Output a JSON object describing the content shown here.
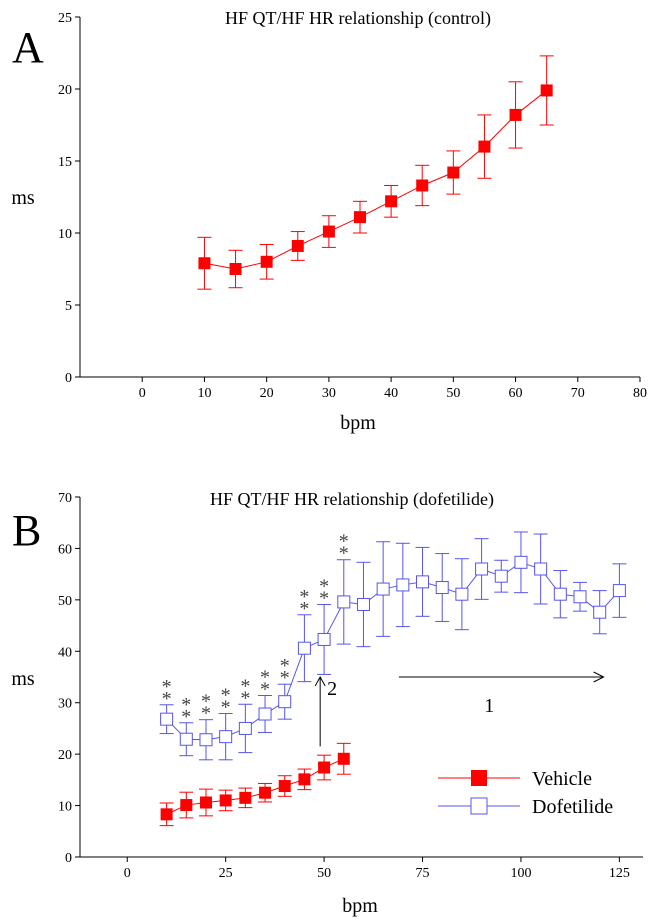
{
  "colors": {
    "red": "#ff0000",
    "blue": "#5555ee",
    "axis": "#000000",
    "annotation": "#444444"
  },
  "chart_data": [
    {
      "panel_label": "A",
      "type": "line",
      "title": "HF QT/HF HR relationship (control)",
      "xlabel": "bpm",
      "ylabel": "ms",
      "xlim": [
        -10,
        80
      ],
      "ylim": [
        0,
        25
      ],
      "xticks": [
        0,
        10,
        20,
        30,
        40,
        50,
        60,
        70,
        80
      ],
      "yticks": [
        0,
        5,
        10,
        15,
        20,
        25
      ],
      "grid": false,
      "series": [
        {
          "color_key": "red",
          "marker": "filled-square",
          "x": [
            10,
            15,
            20,
            25,
            30,
            35,
            40,
            45,
            50,
            55,
            60,
            65
          ],
          "y": [
            7.9,
            7.5,
            8.0,
            9.1,
            10.1,
            11.1,
            12.2,
            13.3,
            14.2,
            16.0,
            18.2,
            19.9
          ],
          "err": [
            1.8,
            1.3,
            1.2,
            1.0,
            1.1,
            1.1,
            1.1,
            1.4,
            1.5,
            2.2,
            2.3,
            2.4
          ]
        }
      ]
    },
    {
      "panel_label": "B",
      "type": "line",
      "title": "HF QT/HF HR relationship (dofetilide)",
      "xlabel": "bpm",
      "ylabel": "ms",
      "xlim": [
        -12,
        131
      ],
      "ylim": [
        0,
        70
      ],
      "xticks": [
        0,
        25,
        50,
        75,
        100,
        125
      ],
      "yticks": [
        0,
        10,
        20,
        30,
        40,
        50,
        60,
        70
      ],
      "grid": false,
      "legend_position": "bottom-right",
      "series": [
        {
          "name": "Vehicle",
          "color_key": "red",
          "marker": "filled-square",
          "x": [
            10,
            15,
            20,
            25,
            30,
            35,
            40,
            45,
            50,
            55
          ],
          "y": [
            8.3,
            10.1,
            10.6,
            11.0,
            11.5,
            12.5,
            13.8,
            15.1,
            17.4,
            19.1
          ],
          "err": [
            2.2,
            2.5,
            2.6,
            2.0,
            1.9,
            1.8,
            2.0,
            2.0,
            2.4,
            3.0
          ]
        },
        {
          "name": "Dofetilide",
          "color_key": "blue",
          "marker": "open-square",
          "x": [
            10,
            15,
            20,
            25,
            30,
            35,
            40,
            45,
            50,
            55,
            60,
            65,
            70,
            75,
            80,
            85,
            90,
            95,
            100,
            105,
            110,
            115,
            120,
            125
          ],
          "y": [
            26.8,
            22.9,
            22.8,
            23.4,
            25.0,
            27.8,
            30.2,
            40.6,
            42.3,
            49.6,
            49.1,
            52.1,
            52.9,
            53.5,
            52.4,
            51.1,
            56.0,
            54.6,
            57.3,
            56.0,
            51.1,
            50.6,
            47.6,
            51.8
          ],
          "err": [
            2.8,
            3.2,
            3.9,
            4.5,
            4.7,
            3.6,
            3.4,
            6.5,
            6.8,
            8.2,
            8.2,
            9.2,
            8.1,
            6.7,
            6.6,
            6.9,
            5.9,
            3.1,
            5.9,
            6.8,
            4.6,
            2.8,
            4.2,
            5.2
          ]
        }
      ],
      "significance_marks": {
        "text": "**",
        "x": [
          10,
          15,
          20,
          25,
          30,
          35,
          40,
          45,
          50,
          55
        ]
      },
      "annotations": [
        {
          "id": "arrow-2",
          "label": "2",
          "x": 49,
          "y_from": 21.5,
          "y_to": 35
        },
        {
          "id": "arrow-1",
          "label": "1",
          "x_from": 69,
          "x_to": 121,
          "y": 35
        }
      ]
    }
  ]
}
